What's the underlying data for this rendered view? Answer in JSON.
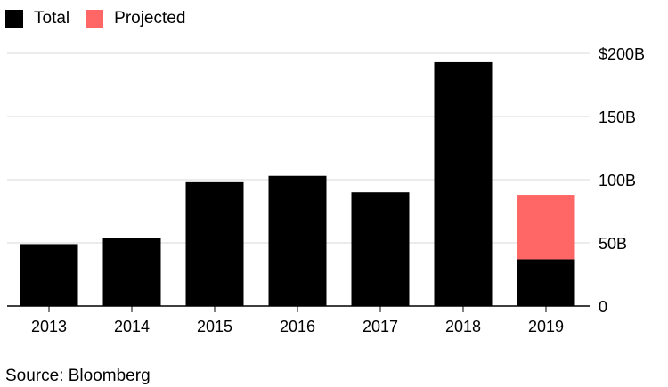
{
  "legend": {
    "items": [
      {
        "label": "Total",
        "color": "#000000"
      },
      {
        "label": "Projected",
        "color": "#ff6666"
      }
    ]
  },
  "source": "Source: Bloomberg",
  "chart_data": {
    "type": "bar",
    "stacked": true,
    "categories": [
      "2013",
      "2014",
      "2015",
      "2016",
      "2017",
      "2018",
      "2019"
    ],
    "series": [
      {
        "name": "Total",
        "color": "#000000",
        "values": [
          49,
          54,
          98,
          103,
          90,
          193,
          37
        ]
      },
      {
        "name": "Projected",
        "color": "#ff6666",
        "values": [
          0,
          0,
          0,
          0,
          0,
          0,
          51
        ]
      }
    ],
    "title": "",
    "xlabel": "",
    "ylabel": "",
    "ylim": [
      0,
      200
    ],
    "yticks": [
      {
        "value": 0,
        "label": "0"
      },
      {
        "value": 50,
        "label": "50B"
      },
      {
        "value": 100,
        "label": "100B"
      },
      {
        "value": 150,
        "label": "150B"
      },
      {
        "value": 200,
        "label": "$200B"
      }
    ],
    "grid": true,
    "legend_position": "top-left",
    "y_axis_side": "right"
  }
}
